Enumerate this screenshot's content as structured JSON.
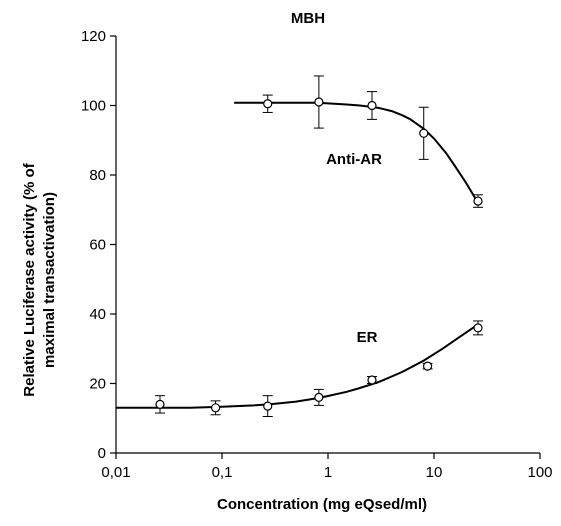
{
  "chart_data": {
    "type": "scatter",
    "title": "MBH",
    "xlabel": "Concentration (mg eQsed/ml)",
    "ylabel_line1": "Relative Luciferase activity (% of",
    "ylabel_line2": "maximal transactivation)",
    "x_scale": "log",
    "xlim": [
      0.01,
      100
    ],
    "ylim": [
      0,
      120
    ],
    "x_ticks": [
      0.01,
      0.1,
      1,
      10,
      100
    ],
    "x_tick_labels": [
      "0,01",
      "0,1",
      "1",
      "10",
      "100"
    ],
    "y_ticks": [
      0,
      20,
      40,
      60,
      80,
      100,
      120
    ],
    "y_tick_labels": [
      "0",
      "20",
      "40",
      "60",
      "80",
      "100",
      "120"
    ],
    "grid": false,
    "legend": "none",
    "series": [
      {
        "label": "Anti-AR",
        "points": [
          {
            "x": 0.27,
            "y": 100.5,
            "err": 2.5
          },
          {
            "x": 0.82,
            "y": 101.0,
            "err": 7.5
          },
          {
            "x": 2.6,
            "y": 100.0,
            "err": 4.0
          },
          {
            "x": 8.0,
            "y": 92.0,
            "err": 7.5
          },
          {
            "x": 26.0,
            "y": 72.5,
            "err": 1.8
          }
        ],
        "fit": [
          [
            0.13,
            100.8
          ],
          [
            0.2,
            100.8
          ],
          [
            0.3,
            100.8
          ],
          [
            0.5,
            100.8
          ],
          [
            0.8,
            100.8
          ],
          [
            1.0,
            100.6
          ],
          [
            1.5,
            100.3
          ],
          [
            2.0,
            100.0
          ],
          [
            3.0,
            99.3
          ],
          [
            4.0,
            98.4
          ],
          [
            5.0,
            97.2
          ],
          [
            6.0,
            96.0
          ],
          [
            8.0,
            93.3
          ],
          [
            10.0,
            90.5
          ],
          [
            13.0,
            86.3
          ],
          [
            16.0,
            82.3
          ],
          [
            20.0,
            77.8
          ],
          [
            26.0,
            72.0
          ]
        ]
      },
      {
        "label": "ER",
        "points": [
          {
            "x": 0.026,
            "y": 14.0,
            "err": 2.5
          },
          {
            "x": 0.087,
            "y": 13.0,
            "err": 2.0
          },
          {
            "x": 0.27,
            "y": 13.5,
            "err": 3.0
          },
          {
            "x": 0.82,
            "y": 16.0,
            "err": 2.3
          },
          {
            "x": 2.6,
            "y": 21.0,
            "err": 1.0
          },
          {
            "x": 8.7,
            "y": 25.0,
            "err": 0.8
          },
          {
            "x": 26.0,
            "y": 36.0,
            "err": 2.0
          }
        ],
        "fit": [
          [
            0.01,
            13.0
          ],
          [
            0.02,
            13.0
          ],
          [
            0.05,
            13.0
          ],
          [
            0.1,
            13.3
          ],
          [
            0.2,
            13.7
          ],
          [
            0.3,
            14.1
          ],
          [
            0.5,
            14.8
          ],
          [
            0.8,
            15.8
          ],
          [
            1.0,
            16.4
          ],
          [
            1.5,
            17.6
          ],
          [
            2.0,
            18.7
          ],
          [
            3.0,
            20.4
          ],
          [
            5.0,
            23.3
          ],
          [
            8.0,
            26.6
          ],
          [
            12.0,
            30.0
          ],
          [
            18.0,
            33.7
          ],
          [
            26.0,
            37.0
          ]
        ]
      }
    ]
  }
}
